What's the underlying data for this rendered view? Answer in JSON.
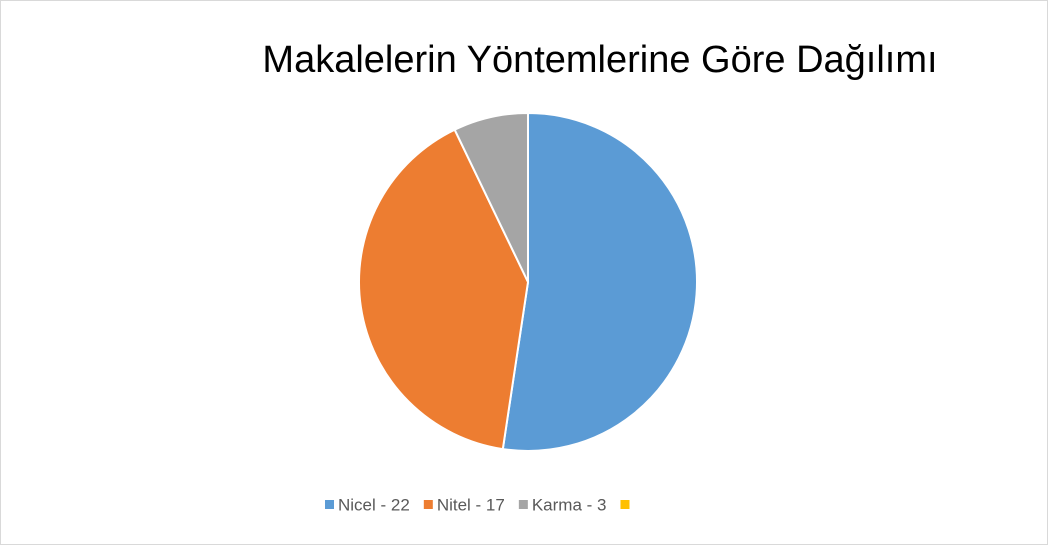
{
  "chart_data": {
    "type": "pie",
    "title": "Makalelerin Yöntemlerine Göre Dağılımı",
    "categories": [
      "Nicel - 22",
      "Nitel - 17",
      "Karma - 3",
      null
    ],
    "values": [
      22,
      17,
      3,
      0
    ],
    "colors": [
      "#5b9bd5",
      "#ed7d31",
      "#a5a5a5",
      "#ffc000"
    ],
    "legend": "bottom"
  }
}
